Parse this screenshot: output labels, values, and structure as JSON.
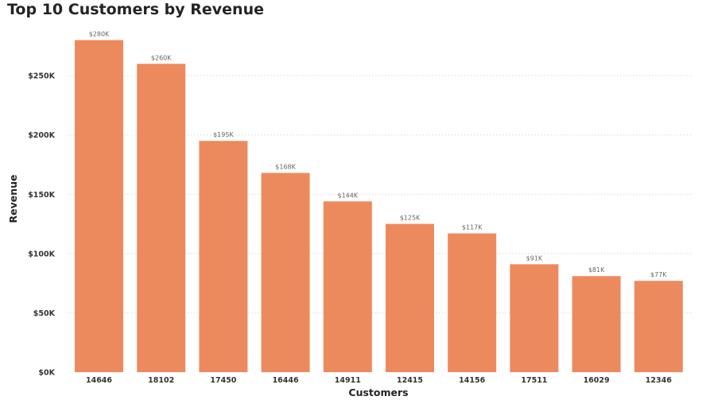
{
  "chart_data": {
    "type": "bar",
    "title": "Top 10 Customers by Revenue",
    "xlabel": "Customers",
    "ylabel": "Revenue",
    "categories": [
      "14646",
      "18102",
      "17450",
      "16446",
      "14911",
      "12415",
      "14156",
      "17511",
      "16029",
      "12346"
    ],
    "values": [
      280000,
      260000,
      195000,
      168000,
      144000,
      125000,
      117000,
      91000,
      81000,
      77000
    ],
    "data_labels": [
      "$280K",
      "$260K",
      "$195K",
      "$168K",
      "$144K",
      "$125K",
      "$117K",
      "$91K",
      "$81K",
      "$77K"
    ],
    "ylim": [
      0,
      287000
    ],
    "yticks": [
      0,
      50000,
      100000,
      150000,
      200000,
      250000
    ],
    "ytick_labels": [
      "$0K",
      "$50K",
      "$100K",
      "$150K",
      "$200K",
      "$250K"
    ],
    "grid": true,
    "bar_color": "#EC8A5E"
  }
}
